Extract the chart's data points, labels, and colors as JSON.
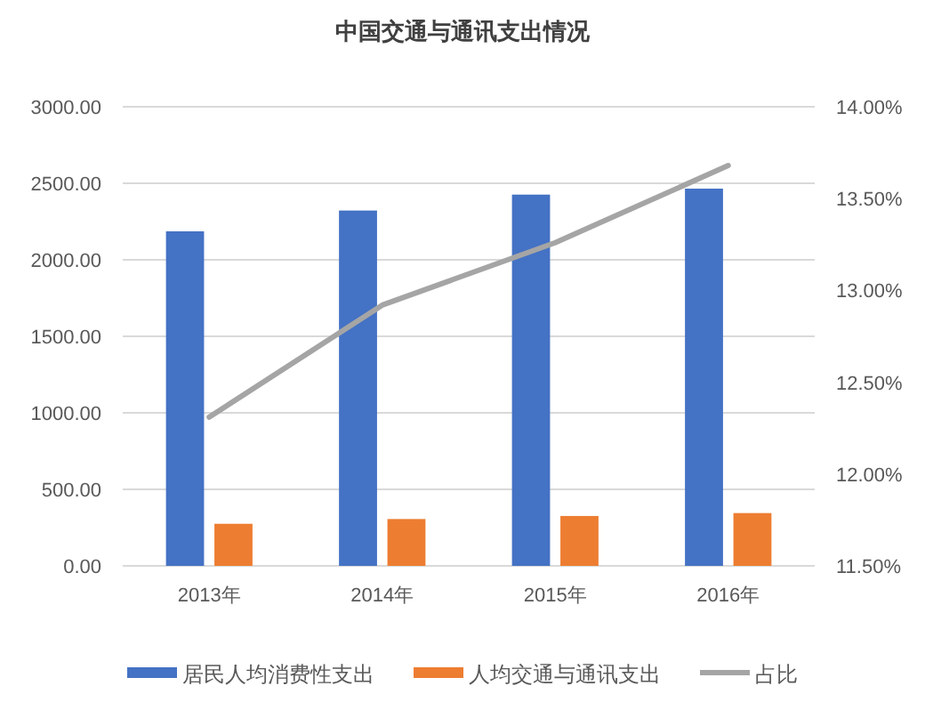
{
  "chart_data": {
    "type": "bar",
    "title": "中国交通与通讯支出情况",
    "categories": [
      "2013年",
      "2014年",
      "2015年",
      "2016年"
    ],
    "series": [
      {
        "name": "居民人均消费性支出",
        "color": "#4472c4",
        "values": [
          2186,
          2322,
          2426,
          2465
        ]
      },
      {
        "name": "人均交通与通讯支出",
        "color": "#ed7d31",
        "values": [
          275,
          306,
          326,
          345
        ]
      },
      {
        "name": "占比",
        "color": "#a5a5a5",
        "type": "line",
        "axis": "y2",
        "values": [
          12.31,
          12.92,
          13.26,
          13.68
        ]
      }
    ],
    "ylim": [
      0,
      3000
    ],
    "yticks": [
      {
        "value": 0,
        "label": "0.00"
      },
      {
        "value": 500,
        "label": "500.00"
      },
      {
        "value": 1000,
        "label": "1000.00"
      },
      {
        "value": 1500,
        "label": "1500.00"
      },
      {
        "value": 2000,
        "label": "2000.00"
      },
      {
        "value": 2500,
        "label": "2500.00"
      },
      {
        "value": 3000,
        "label": "3000.00"
      }
    ],
    "y2lim": [
      11.5,
      14
    ],
    "y2ticks": [
      {
        "value": 11.5,
        "label": "11.50%"
      },
      {
        "value": 12,
        "label": "12.00%"
      },
      {
        "value": 12.5,
        "label": "12.50%"
      },
      {
        "value": 13,
        "label": "13.00%"
      },
      {
        "value": 13.5,
        "label": "13.50%"
      },
      {
        "value": 14,
        "label": "14.00%"
      }
    ],
    "grid": "y",
    "legend": "bottom",
    "marker": "none"
  }
}
